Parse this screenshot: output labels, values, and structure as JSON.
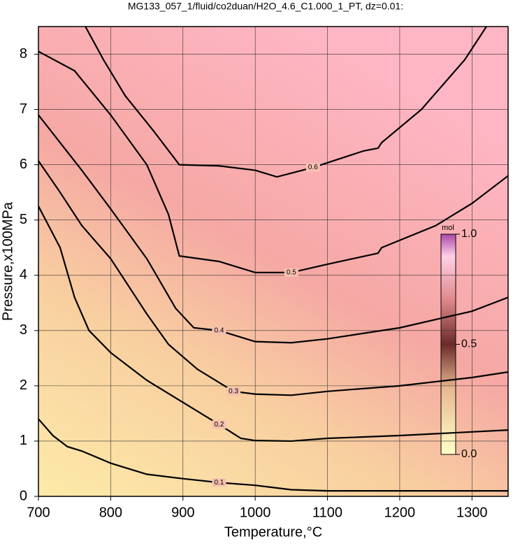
{
  "chart_data": {
    "type": "contour",
    "title": "MG133_057_1/fluid/co2duan/H2O_4.6_C1.000_1_PT, dz=0.01:",
    "x_label": "Temperature,°C",
    "y_label": "Pressure,x100MPa",
    "xlim": [
      700,
      1350
    ],
    "ylim": [
      0,
      8.5
    ],
    "xticks": [
      700,
      800,
      900,
      1000,
      1100,
      1200,
      1300
    ],
    "yticks": [
      0,
      1,
      2,
      3,
      4,
      5,
      6,
      7,
      8
    ],
    "grid": true,
    "line_color": "#000000",
    "contours": [
      {
        "level": 0.1,
        "x": [
          700,
          720,
          740,
          760,
          800,
          850,
          900,
          950,
          1000,
          1050,
          1100,
          1200,
          1350
        ],
        "y": [
          1.4,
          1.1,
          0.9,
          0.82,
          0.6,
          0.4,
          0.32,
          0.25,
          0.2,
          0.12,
          0.1,
          0.1,
          0.1
        ]
      },
      {
        "level": 0.2,
        "x": [
          700,
          730,
          750,
          770,
          800,
          850,
          900,
          950,
          980,
          1000,
          1050,
          1100,
          1200,
          1350
        ],
        "y": [
          5.25,
          4.5,
          3.6,
          3.0,
          2.6,
          2.1,
          1.7,
          1.3,
          1.05,
          1.01,
          1.0,
          1.05,
          1.1,
          1.2
        ]
      },
      {
        "level": 0.3,
        "x": [
          700,
          730,
          760,
          800,
          850,
          880,
          920,
          970,
          1000,
          1050,
          1100,
          1200,
          1300,
          1350
        ],
        "y": [
          6.07,
          5.5,
          4.9,
          4.3,
          3.3,
          2.75,
          2.3,
          1.9,
          1.85,
          1.83,
          1.9,
          2.0,
          2.15,
          2.25
        ]
      },
      {
        "level": 0.4,
        "x": [
          700,
          730,
          760,
          800,
          850,
          890,
          915,
          950,
          1000,
          1050,
          1100,
          1200,
          1300,
          1350
        ],
        "y": [
          6.9,
          6.4,
          5.9,
          5.2,
          4.3,
          3.4,
          3.05,
          3.0,
          2.8,
          2.78,
          2.85,
          3.05,
          3.35,
          3.6
        ]
      },
      {
        "level": 0.5,
        "x": [
          700,
          750,
          800,
          850,
          880,
          895,
          950,
          1000,
          1050,
          1100,
          1170,
          1175,
          1250,
          1300,
          1350
        ],
        "y": [
          8.05,
          7.7,
          6.9,
          6.0,
          5.1,
          4.35,
          4.25,
          4.05,
          4.05,
          4.2,
          4.4,
          4.5,
          4.9,
          5.3,
          5.8
        ]
      },
      {
        "level": 0.6,
        "x": [
          765,
          790,
          820,
          860,
          895,
          950,
          1000,
          1030,
          1080,
          1150,
          1170,
          1175,
          1230,
          1290,
          1320
        ],
        "y": [
          8.5,
          7.9,
          7.25,
          6.6,
          6.0,
          5.98,
          5.9,
          5.78,
          5.95,
          6.25,
          6.3,
          6.4,
          7.0,
          7.9,
          8.5
        ]
      }
    ],
    "colorbar": {
      "label": "mol",
      "ticks": [
        {
          "value": 0,
          "label": "0.0"
        },
        0.5,
        {
          "value": 1,
          "label": "1.0"
        }
      ]
    }
  }
}
